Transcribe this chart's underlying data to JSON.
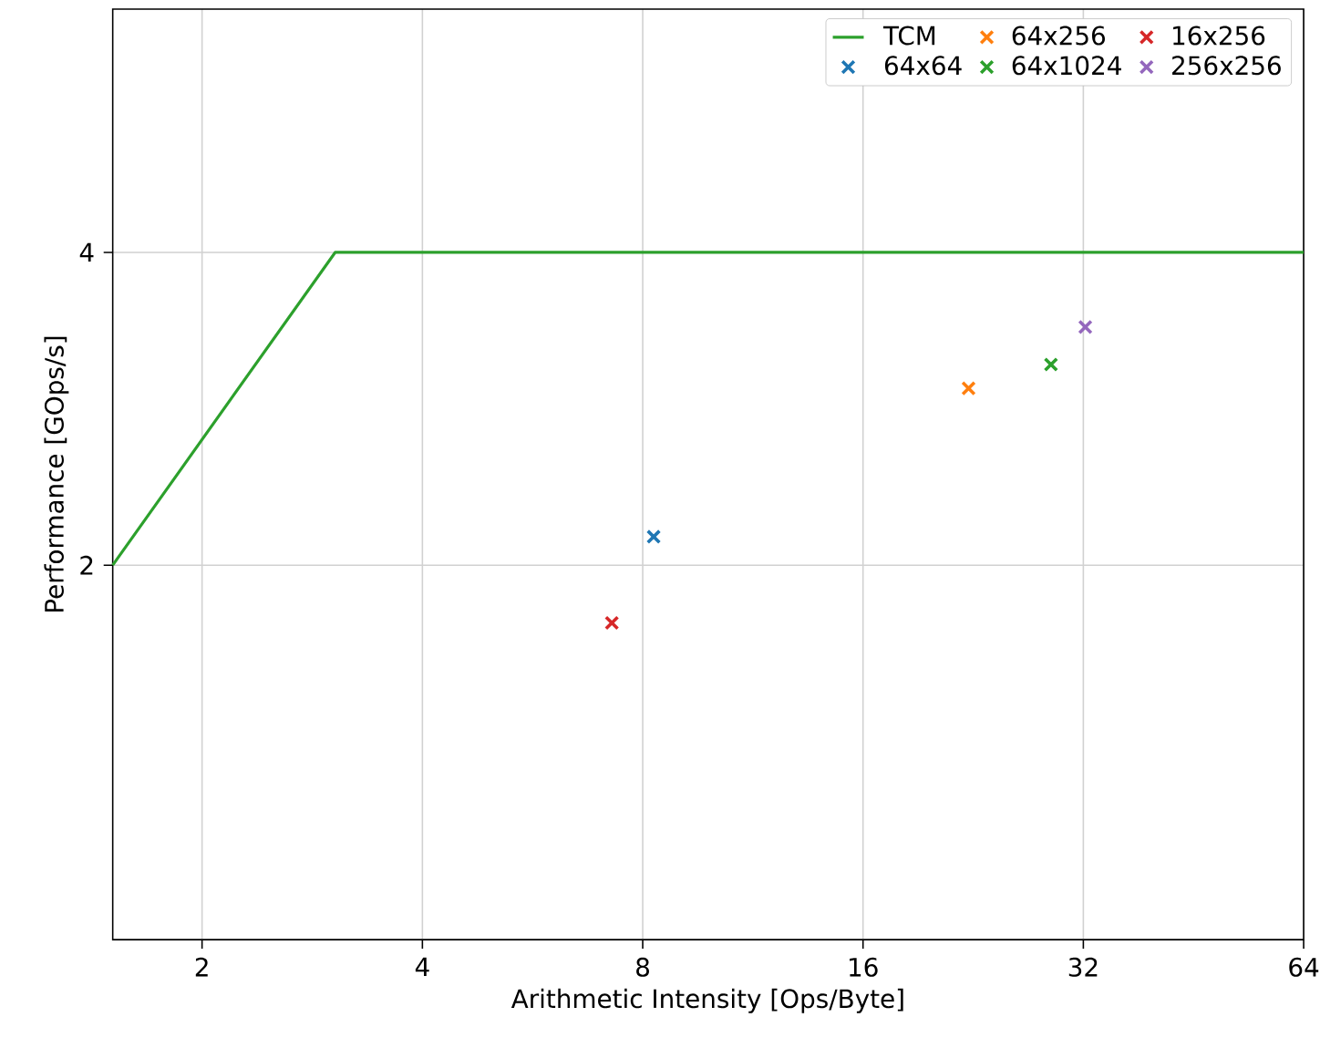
{
  "chart_data": {
    "type": "scatter",
    "xlabel": "Arithmetic Intensity [Ops/Byte]",
    "ylabel": "Performance [GOps/s]",
    "log": "xy",
    "xlim": [
      1.51,
      64
    ],
    "ylim": [
      0.872,
      6.86
    ],
    "xticks": [
      2,
      4,
      8,
      16,
      32,
      64
    ],
    "yticks": [
      2,
      4
    ],
    "grid": true,
    "legend": "top right",
    "marker": "cross",
    "series": [
      {
        "name": "TCM",
        "type": "line",
        "marker": "none",
        "color": "#2ca02c",
        "x": [
          1.51,
          3.04,
          64
        ],
        "values": [
          2,
          4,
          4
        ]
      },
      {
        "name": "64x64",
        "color": "#1f77b4",
        "x": [
          8.28
        ],
        "values": [
          2.13
        ]
      },
      {
        "name": "64x256",
        "color": "#ff7f0e",
        "x": [
          22.3
        ],
        "values": [
          2.96
        ]
      },
      {
        "name": "64x1024",
        "color": "#2ca02c",
        "x": [
          28.9
        ],
        "values": [
          3.12
        ]
      },
      {
        "name": "16x256",
        "color": "#d62728",
        "x": [
          7.26
        ],
        "values": [
          1.76
        ]
      },
      {
        "name": "256x256",
        "color": "#9467bd",
        "x": [
          32.2
        ],
        "values": [
          3.39
        ]
      }
    ]
  }
}
